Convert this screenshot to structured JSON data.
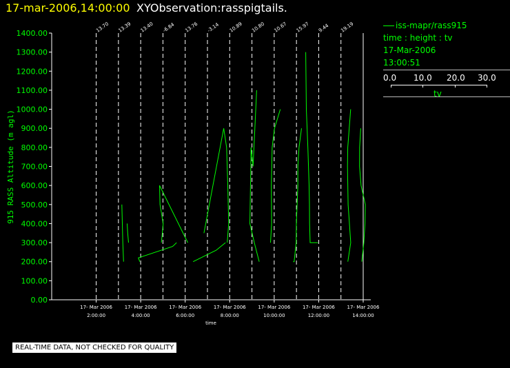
{
  "header": {
    "datetime": "17-mar-2006,14:00:00",
    "title": "XYObservation:rasspigtails."
  },
  "legend": {
    "series_label": "iss-mapr/rass915",
    "variables": "time : height : tv",
    "date": "17-Mar-2006",
    "time": "13:00:51",
    "scale_ticks": [
      "0.0",
      "10.0",
      "20.0",
      "30.0"
    ],
    "scale_label": "tv"
  },
  "notice": "REAL-TIME DATA, NOT CHECKED FOR QUALITY",
  "colors": {
    "series": "#00ff00",
    "axis_label": "#00ff00",
    "header_date": "#ffff00",
    "background": "#000000"
  },
  "chart_data": {
    "type": "line",
    "ylabel": "915 RASS Altitude (m agl)",
    "xlabel": "time",
    "ylim": [
      0,
      1400
    ],
    "yticks": [
      "0.00",
      "100.00",
      "200.00",
      "300.00",
      "400.00",
      "500.00",
      "600.00",
      "700.00",
      "800.00",
      "900.00",
      "1000.00",
      "1100.00",
      "1200.00",
      "1300.00",
      "1400.00"
    ],
    "xlim": [
      0.0,
      14.0
    ],
    "xticks": [
      {
        "x": 2,
        "date": "17- Mar 2006",
        "time": "2:00:00"
      },
      {
        "x": 4,
        "date": "17- Mar 2006",
        "time": "4:00:00"
      },
      {
        "x": 6,
        "date": "17- Mar 2006",
        "time": "6:00:00"
      },
      {
        "x": 8,
        "date": "17- Mar 2006",
        "time": "8:00:00"
      },
      {
        "x": 10,
        "date": "17- Mar 2006",
        "time": "10:00:00"
      },
      {
        "x": 12,
        "date": "17- Mar 2006",
        "time": "12:00:00"
      },
      {
        "x": 14,
        "date": "17- Mar 2006",
        "time": "14:00:00"
      }
    ],
    "profile_times": [
      2.0,
      3.0,
      4.0,
      5.0,
      6.0,
      7.0,
      8.0,
      9.0,
      10.0,
      11.0,
      12.0,
      13.0
    ],
    "profile_labels": [
      "13.70",
      "13.39",
      "13.40",
      "-6.84",
      "13.76",
      "-3.14",
      "10.89",
      "10.80",
      "10.67",
      "15.97",
      "9.44",
      "19.19"
    ],
    "tv_scale_hours_per_degree": 0.0522,
    "profiles": [
      {
        "tv": [
          22.1,
          22.9,
          23.6
        ],
        "height": [
          500,
          300,
          200
        ]
      },
      {
        "tv": [
          7.5,
          8.0,
          8.7
        ],
        "height": [
          400,
          350,
          300
        ]
      },
      {
        "tv": [
          -0.8,
          -2.0,
          27.5,
          30.9
        ],
        "height": [
          200,
          220,
          280,
          300
        ]
      },
      {
        "tv": [
          -1.3,
          0.2,
          -2.5,
          -2.9,
          21.4
        ],
        "height": [
          300,
          400,
          500,
          600,
          300
        ]
      },
      {
        "tv": [
          6.8,
          26.7,
          34.7
        ],
        "height": [
          200,
          260,
          300
        ]
      },
      {
        "tv": [
          -3.0,
          14.0,
          16.5,
          17.5,
          18.3,
          17.0
        ],
        "height": [
          350,
          900,
          800,
          600,
          400,
          300
        ]
      },
      {
        "tv": [
          23.2,
          20.1,
          18.4,
          17.4,
          21.2,
          25.4
        ],
        "height": [
          1100,
          700,
          800,
          400,
          300,
          200
        ]
      },
      {
        "tv": [
          24.4,
          19.4,
          17.4,
          16.7,
          16.9,
          16.0
        ],
        "height": [
          1000,
          900,
          800,
          600,
          400,
          300
        ]
      },
      {
        "tv": [
          23.5,
          21.4,
          20.4,
          20.4,
          19.1,
          18.9,
          17.2,
          16.3
        ],
        "height": [
          900,
          800,
          700,
          600,
          400,
          300,
          200,
          200
        ]
      },
      {
        "tv": [
          8.0,
          8.5,
          9.8,
          10.9,
          11.2,
          11.3,
          11.8,
          12.7,
          18.5
        ],
        "height": [
          1300,
          1000,
          800,
          600,
          500,
          400,
          300,
          300,
          300
        ]
      },
      {
        "tv": [
          27.5,
          25.0,
          24.8,
          25.3,
          27.6,
          25.1
        ],
        "height": [
          1000,
          800,
          700,
          500,
          300,
          200
        ]
      },
      {
        "tv": [
          17.0,
          16.1,
          16.0,
          17.3,
          21.0,
          20.7,
          19.7,
          18.0
        ],
        "height": [
          900,
          800,
          700,
          600,
          500,
          400,
          300,
          200
        ]
      }
    ]
  }
}
